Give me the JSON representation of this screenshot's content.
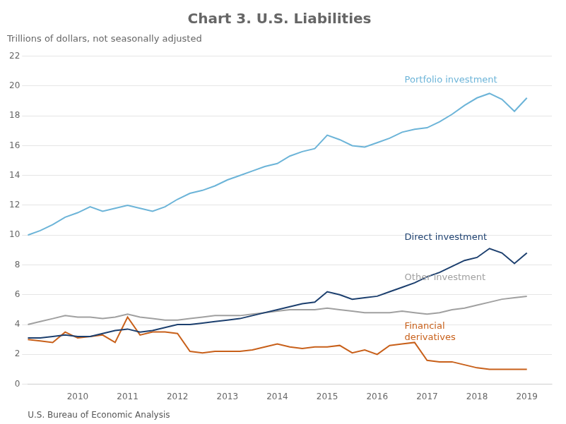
{
  "chart_data": {
    "type": "line",
    "title": "Chart 3. U.S. Liabilities",
    "subtitle": "Trillions of dollars, not seasonally adjusted",
    "source": "U.S. Bureau of Economic Analysis",
    "x": [
      2009.0,
      2009.25,
      2009.5,
      2009.75,
      2010.0,
      2010.25,
      2010.5,
      2010.75,
      2011.0,
      2011.25,
      2011.5,
      2011.75,
      2012.0,
      2012.25,
      2012.5,
      2012.75,
      2013.0,
      2013.25,
      2013.5,
      2013.75,
      2014.0,
      2014.25,
      2014.5,
      2014.75,
      2015.0,
      2015.25,
      2015.5,
      2015.75,
      2016.0,
      2016.25,
      2016.5,
      2016.75,
      2017.0,
      2017.25,
      2017.5,
      2017.75,
      2018.0,
      2018.25,
      2018.5,
      2018.75,
      2019.0
    ],
    "series": [
      {
        "name": "Portfolio investment",
        "color": "#6CB4D8",
        "values": [
          10.0,
          10.3,
          10.7,
          11.2,
          11.5,
          11.9,
          11.6,
          11.8,
          12.0,
          11.8,
          11.6,
          11.9,
          12.4,
          12.8,
          13.0,
          13.3,
          13.7,
          14.0,
          14.3,
          14.6,
          14.8,
          15.3,
          15.6,
          15.8,
          16.7,
          16.4,
          16.0,
          15.9,
          16.2,
          16.5,
          16.9,
          17.1,
          17.2,
          17.6,
          18.1,
          18.7,
          19.2,
          19.5,
          19.1,
          18.3,
          19.2
        ]
      },
      {
        "name": "Direct investment",
        "color": "#1C3F6E",
        "values": [
          3.1,
          3.1,
          3.2,
          3.3,
          3.2,
          3.2,
          3.4,
          3.6,
          3.7,
          3.5,
          3.6,
          3.8,
          4.0,
          4.0,
          4.1,
          4.2,
          4.3,
          4.4,
          4.6,
          4.8,
          5.0,
          5.2,
          5.4,
          5.5,
          6.2,
          6.0,
          5.7,
          5.8,
          5.9,
          6.2,
          6.5,
          6.8,
          7.2,
          7.5,
          7.9,
          8.3,
          8.5,
          9.1,
          8.8,
          8.1,
          8.8
        ]
      },
      {
        "name": "Other investment",
        "color": "#A0A0A0",
        "values": [
          4.0,
          4.2,
          4.4,
          4.6,
          4.5,
          4.5,
          4.4,
          4.5,
          4.7,
          4.5,
          4.4,
          4.3,
          4.3,
          4.4,
          4.5,
          4.6,
          4.6,
          4.6,
          4.7,
          4.8,
          4.9,
          5.0,
          5.0,
          5.0,
          5.1,
          5.0,
          4.9,
          4.8,
          4.8,
          4.8,
          4.9,
          4.8,
          4.7,
          4.8,
          5.0,
          5.1,
          5.3,
          5.5,
          5.7,
          5.8,
          5.9
        ]
      },
      {
        "name": "Financial\nderivatives",
        "color": "#C8601A",
        "values": [
          3.0,
          2.9,
          2.8,
          3.5,
          3.1,
          3.2,
          3.3,
          2.8,
          4.5,
          3.3,
          3.5,
          3.5,
          3.4,
          2.2,
          2.1,
          2.2,
          2.2,
          2.2,
          2.3,
          2.5,
          2.7,
          2.5,
          2.4,
          2.5,
          2.5,
          2.6,
          2.1,
          2.3,
          2.0,
          2.6,
          2.7,
          2.8,
          1.6,
          1.5,
          1.5,
          1.3,
          1.1,
          1.0,
          1.0,
          1.0,
          1.0
        ]
      }
    ],
    "xlim": [
      2009.0,
      2019.5
    ],
    "xticks": [
      2010,
      2011,
      2012,
      2013,
      2014,
      2015,
      2016,
      2017,
      2018,
      2019
    ],
    "ylim": [
      0,
      22
    ],
    "yticks": [
      0,
      2,
      4,
      6,
      8,
      10,
      12,
      14,
      16,
      18,
      20,
      22
    ],
    "grid": true,
    "annotations": [
      {
        "text": "Portfolio investment",
        "x": 2016.55,
        "y": 20.4,
        "color": "#6CB4D8"
      },
      {
        "text": "Direct investment",
        "x": 2016.55,
        "y": 9.85,
        "color": "#1C3F6E"
      },
      {
        "text": "Other investment",
        "x": 2016.55,
        "y": 7.15,
        "color": "#A0A0A0"
      },
      {
        "text": "Financial\nderivatives",
        "x": 2016.55,
        "y": 3.5,
        "color": "#C8601A"
      }
    ]
  }
}
